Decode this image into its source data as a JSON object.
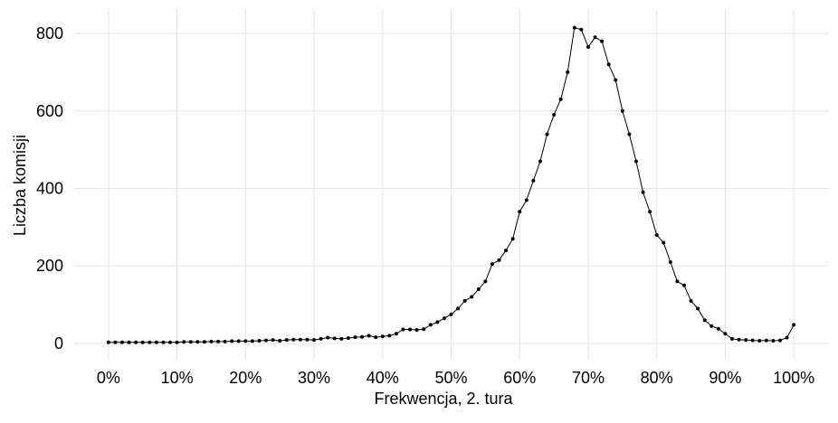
{
  "chart_data": {
    "type": "line",
    "x_label": "Frekwencja, 2. tura",
    "y_label": "Liczba komisji",
    "x": [
      0,
      1,
      2,
      3,
      4,
      5,
      6,
      7,
      8,
      9,
      10,
      11,
      12,
      13,
      14,
      15,
      16,
      17,
      18,
      19,
      20,
      21,
      22,
      23,
      24,
      25,
      26,
      27,
      28,
      29,
      30,
      31,
      32,
      33,
      34,
      35,
      36,
      37,
      38,
      39,
      40,
      41,
      42,
      43,
      44,
      45,
      46,
      47,
      48,
      49,
      50,
      51,
      52,
      53,
      54,
      55,
      56,
      57,
      58,
      59,
      60,
      61,
      62,
      63,
      64,
      65,
      66,
      67,
      68,
      69,
      70,
      71,
      72,
      73,
      74,
      75,
      76,
      77,
      78,
      79,
      80,
      81,
      82,
      83,
      84,
      85,
      86,
      87,
      88,
      89,
      90,
      91,
      92,
      93,
      94,
      95,
      96,
      97,
      98,
      99,
      100
    ],
    "series": [
      {
        "name": "Liczba komisji",
        "color": "#000000",
        "values": [
          3,
          3,
          3,
          3,
          3,
          3,
          3,
          3,
          3,
          3,
          3,
          4,
          4,
          4,
          4,
          5,
          5,
          5,
          6,
          6,
          6,
          6,
          7,
          8,
          9,
          7,
          9,
          10,
          10,
          10,
          9,
          12,
          15,
          13,
          12,
          14,
          16,
          17,
          20,
          16,
          18,
          20,
          25,
          36,
          36,
          35,
          37,
          48,
          55,
          65,
          75,
          90,
          110,
          120,
          140,
          160,
          205,
          215,
          240,
          270,
          340,
          370,
          420,
          470,
          540,
          590,
          630,
          700,
          815,
          810,
          765,
          790,
          780,
          720,
          680,
          600,
          540,
          470,
          390,
          340,
          280,
          260,
          210,
          160,
          150,
          110,
          90,
          60,
          45,
          38,
          25,
          12,
          10,
          9,
          8,
          7,
          8,
          7,
          8,
          15,
          48
        ]
      }
    ],
    "xlim": [
      -5,
      105
    ],
    "xticks": [
      {
        "value": 0,
        "label": "0%"
      },
      {
        "value": 10,
        "label": "10%"
      },
      {
        "value": 20,
        "label": "20%"
      },
      {
        "value": 30,
        "label": "30%"
      },
      {
        "value": 40,
        "label": "40%"
      },
      {
        "value": 50,
        "label": "50%"
      },
      {
        "value": 60,
        "label": "60%"
      },
      {
        "value": 70,
        "label": "70%"
      },
      {
        "value": 80,
        "label": "80%"
      },
      {
        "value": 90,
        "label": "90%"
      },
      {
        "value": 100,
        "label": "100%"
      }
    ],
    "ylim": [
      -42,
      863
    ],
    "yticks": [
      0,
      200,
      400,
      600,
      800
    ],
    "grid": true
  }
}
